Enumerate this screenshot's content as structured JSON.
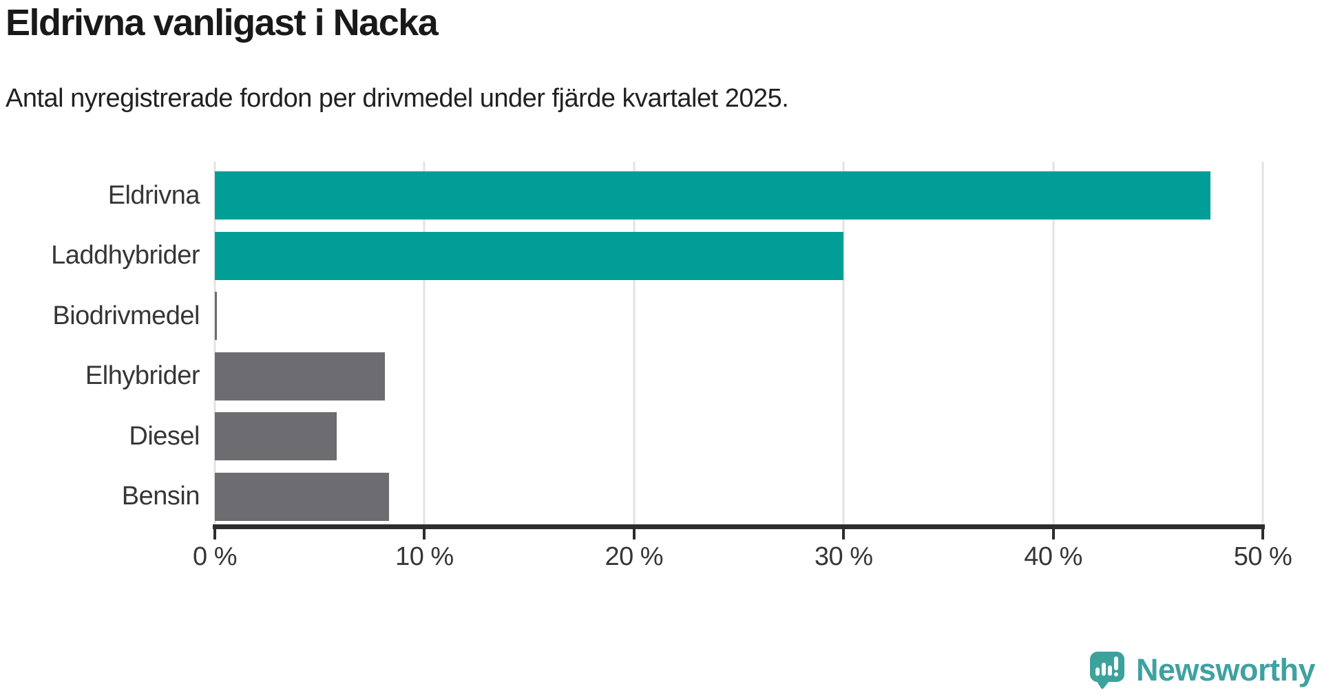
{
  "title": "Eldrivna vanligast i Nacka",
  "subtitle": "Antal nyregistrerade fordon per drivmedel under fjärde kvartalet 2025.",
  "chart_data": {
    "type": "bar",
    "orientation": "horizontal",
    "title": "Eldrivna vanligast i Nacka",
    "subtitle": "Antal nyregistrerade fordon per drivmedel under fjärde kvartalet 2025.",
    "categories": [
      "Eldrivna",
      "Laddhybrider",
      "Biodrivmedel",
      "Elhybrider",
      "Diesel",
      "Bensin"
    ],
    "values": [
      47.5,
      30.0,
      0.1,
      8.1,
      5.8,
      8.3
    ],
    "unit": "%",
    "xlim": [
      0,
      50
    ],
    "x_tick_values": [
      0,
      10,
      20,
      30,
      40,
      50
    ],
    "x_tick_labels": [
      "0 %",
      "10 %",
      "20 %",
      "30 %",
      "40 %",
      "50 %"
    ],
    "grid": true,
    "legend": false,
    "bar_colors": [
      "#009e97",
      "#009e97",
      "#6c6c71",
      "#6c6c71",
      "#6c6c71",
      "#6c6c71"
    ],
    "highlight_color": "#009e97",
    "default_color": "#6c6c71"
  },
  "colors": {
    "accent_teal": "#009e97",
    "bar_gray": "#6c6c71",
    "gridline": "#e3e3e3",
    "axis": "#2d2d2d",
    "text_dark": "#191919",
    "text_label": "#363636"
  },
  "branding": {
    "logo_text": "Newsworthy",
    "logo_text_color": "#40a1a1",
    "logo_icon_color": "#3ba29c",
    "logo_icon": "newsworthy-speech-bubble-barchart-icon"
  }
}
